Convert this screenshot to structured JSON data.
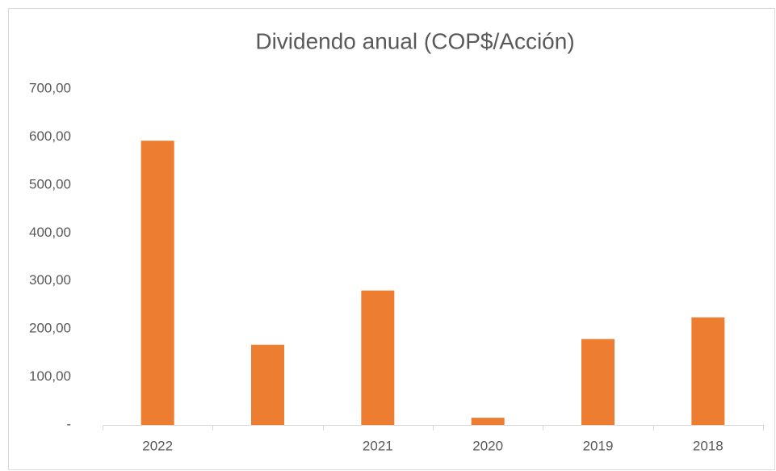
{
  "chart_data": {
    "type": "bar",
    "title": "Dividendo anual (COP$/Acción)",
    "categories": [
      "2022",
      null,
      "2021",
      "2020",
      "2019",
      "2018"
    ],
    "values": [
      592,
      167,
      280,
      15,
      179,
      224
    ],
    "color": "#ed7d31",
    "ylim": [
      0,
      700
    ],
    "yticks": [
      {
        "value": 0,
        "label": "-"
      },
      {
        "value": 100,
        "label": "100,00"
      },
      {
        "value": 200,
        "label": "200,00"
      },
      {
        "value": 300,
        "label": "300,00"
      },
      {
        "value": 400,
        "label": "400,00"
      },
      {
        "value": 500,
        "label": "500,00"
      },
      {
        "value": 600,
        "label": "600,00"
      },
      {
        "value": 700,
        "label": "700,00"
      }
    ],
    "grid": false
  }
}
